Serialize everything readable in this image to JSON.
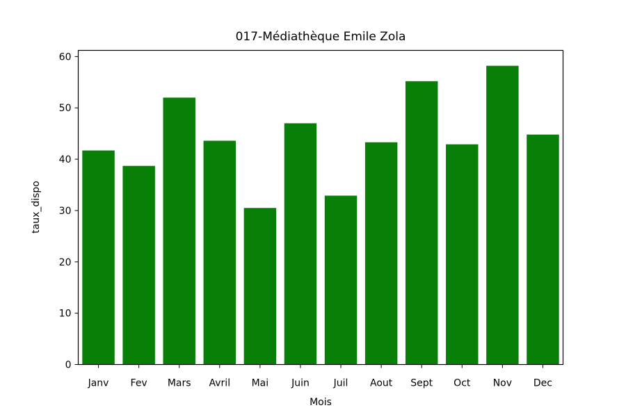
{
  "chart_data": {
    "type": "bar",
    "title": "017-Médiathèque Emile Zola",
    "xlabel": "Mois",
    "ylabel": "taux_dispo",
    "categories": [
      "Janv",
      "Fev",
      "Mars",
      "Avril",
      "Mai",
      "Juin",
      "Juil",
      "Aout",
      "Sept",
      "Oct",
      "Nov",
      "Dec"
    ],
    "values": [
      41.7,
      38.7,
      52.0,
      43.6,
      30.5,
      47.0,
      32.9,
      43.3,
      55.2,
      42.9,
      58.2,
      44.8
    ],
    "ylim": [
      0,
      61.2
    ],
    "yticks": [
      0,
      10,
      20,
      30,
      40,
      50,
      60
    ],
    "bar_color": "#087f07",
    "grid": false,
    "legend": "none"
  }
}
